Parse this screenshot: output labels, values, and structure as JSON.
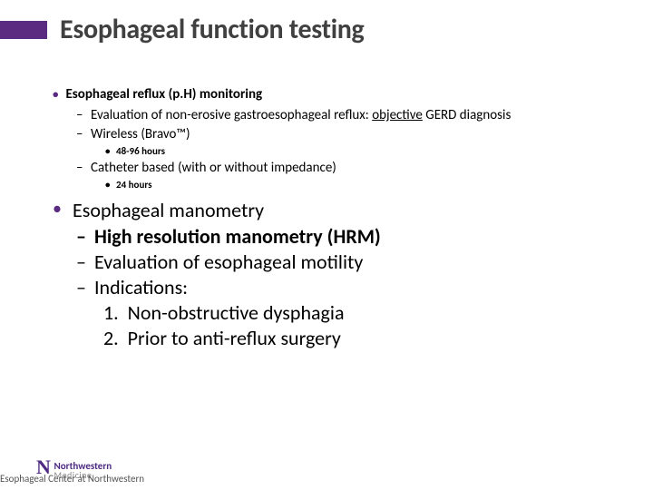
{
  "title": "Esophageal function testing",
  "accent_color": "#5b2b82",
  "section1": {
    "heading": "Esophageal reflux (p.H) monitoring",
    "sub1_pre": "Evaluation of non-erosive gastroesophageal reflux: ",
    "sub1_u": "objective",
    "sub1_post": " GERD diagnosis",
    "sub2": "Wireless (Bravo™)",
    "sub2_detail": "48-96 hours",
    "sub3": "Catheter based (with or without impedance)",
    "sub3_detail": "24 hours"
  },
  "section2": {
    "heading": "Esophageal manometry",
    "sub1": "High resolution manometry (HRM)",
    "sub2": "Evaluation of esophageal motility",
    "sub3": "Indications:",
    "num1": "Non-obstructive dysphagia",
    "num2": "Prior to anti-reflux surgery"
  },
  "footer": {
    "logo_top": "Northwestern",
    "logo_bot": "Medicine",
    "caption": "Esophageal Center at Northwestern"
  }
}
